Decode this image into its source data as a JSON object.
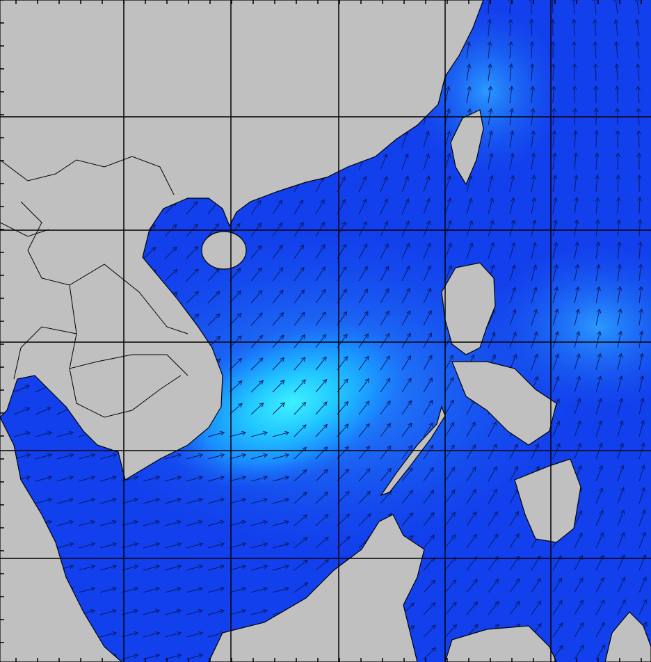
{
  "map": {
    "colors": {
      "ocean_deep": "#0a2fe6",
      "ocean_mid": "#1a66f5",
      "ocean_light": "#28a0ff",
      "ocean_peak": "#3ef0ff",
      "land": "#c0c0c0",
      "coast": "#000000",
      "grid": "#000000",
      "arrow": "#0a1a60"
    }
  }
}
